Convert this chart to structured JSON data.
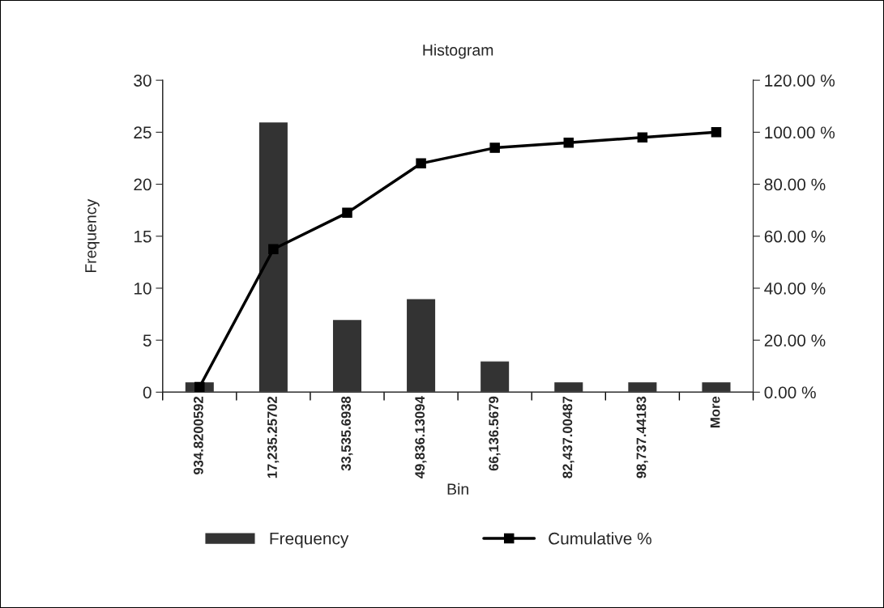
{
  "chart_data": {
    "type": "bar",
    "title": "Histogram",
    "xlabel": "Bin",
    "ylabel": "Frequency",
    "categories": [
      "934.8200592",
      "17,235.25702",
      "33,535.6938",
      "49,836.13094",
      "66,136.5679",
      "82,437.00487",
      "98,737.44183",
      "More"
    ],
    "series": [
      {
        "name": "Frequency",
        "color": "#333333",
        "values": [
          1,
          26,
          7,
          9,
          3,
          1,
          1,
          1
        ]
      },
      {
        "name": "Cumulative %",
        "type": "line",
        "axis": "y2",
        "color": "#000000",
        "marker": "square",
        "values": [
          2,
          55,
          69,
          88,
          94,
          96,
          98,
          100
        ]
      }
    ],
    "ylim": [
      0,
      30
    ],
    "yticks": [
      0,
      5,
      10,
      15,
      20,
      25,
      30
    ],
    "y2lim": [
      0,
      120
    ],
    "y2ticks": [
      {
        "value": 0,
        "label": "0.00 %"
      },
      {
        "value": 20,
        "label": "20.00 %"
      },
      {
        "value": 40,
        "label": "40.00 %"
      },
      {
        "value": 60,
        "label": "60.00 %"
      },
      {
        "value": 80,
        "label": "80.00 %"
      },
      {
        "value": 100,
        "label": "100.00 %"
      },
      {
        "value": 120,
        "label": "120.00 %"
      }
    ],
    "grid": false,
    "legend": "bottom"
  }
}
